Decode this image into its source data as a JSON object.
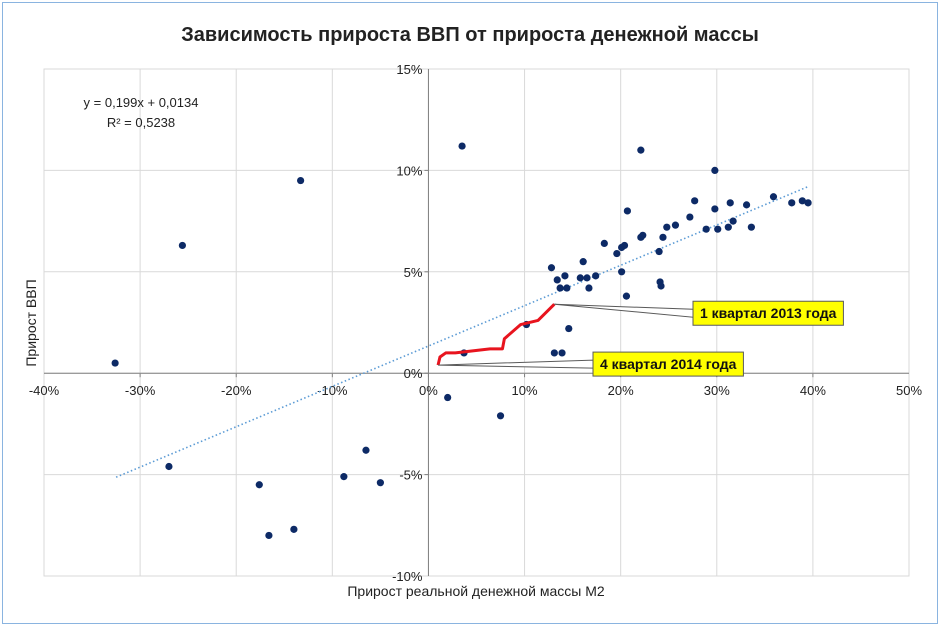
{
  "chart_data": {
    "type": "scatter",
    "title": "Зависимость прироста ВВП от прироста денежной массы",
    "xlabel": "Прирост реальной денежной массы М2",
    "ylabel": "Прирост ВВП",
    "xlim": [
      -0.4,
      0.5
    ],
    "ylim": [
      -0.1,
      0.15
    ],
    "x_ticks": [
      {
        "value": -0.4,
        "label": "-40%"
      },
      {
        "value": -0.3,
        "label": "-30%"
      },
      {
        "value": -0.2,
        "label": "-20%"
      },
      {
        "value": -0.1,
        "label": "-10%"
      },
      {
        "value": 0.0,
        "label": "0%"
      },
      {
        "value": 0.1,
        "label": "10%"
      },
      {
        "value": 0.2,
        "label": "20%"
      },
      {
        "value": 0.3,
        "label": "30%"
      },
      {
        "value": 0.4,
        "label": "40%"
      },
      {
        "value": 0.5,
        "label": "50%"
      }
    ],
    "y_ticks": [
      {
        "value": -0.1,
        "label": "-10%"
      },
      {
        "value": -0.05,
        "label": "-5%"
      },
      {
        "value": 0.0,
        "label": "0%"
      },
      {
        "value": 0.05,
        "label": "5%"
      },
      {
        "value": 0.1,
        "label": "10%"
      },
      {
        "value": 0.15,
        "label": "15%"
      }
    ],
    "grid": true,
    "point_color": "#0d2a66",
    "points": [
      {
        "x": -0.326,
        "y": 0.005
      },
      {
        "x": -0.27,
        "y": -0.046
      },
      {
        "x": -0.256,
        "y": 0.063
      },
      {
        "x": -0.176,
        "y": -0.055
      },
      {
        "x": -0.166,
        "y": -0.08
      },
      {
        "x": -0.14,
        "y": -0.077
      },
      {
        "x": -0.133,
        "y": 0.095
      },
      {
        "x": -0.088,
        "y": -0.051
      },
      {
        "x": -0.065,
        "y": -0.038
      },
      {
        "x": -0.05,
        "y": -0.054
      },
      {
        "x": 0.02,
        "y": -0.012
      },
      {
        "x": 0.035,
        "y": 0.112
      },
      {
        "x": 0.037,
        "y": 0.01
      },
      {
        "x": 0.075,
        "y": -0.021
      },
      {
        "x": 0.102,
        "y": 0.024
      },
      {
        "x": 0.128,
        "y": 0.052
      },
      {
        "x": 0.131,
        "y": 0.01
      },
      {
        "x": 0.134,
        "y": 0.046
      },
      {
        "x": 0.137,
        "y": 0.042
      },
      {
        "x": 0.139,
        "y": 0.01
      },
      {
        "x": 0.142,
        "y": 0.048
      },
      {
        "x": 0.144,
        "y": 0.042
      },
      {
        "x": 0.146,
        "y": 0.022
      },
      {
        "x": 0.158,
        "y": 0.047
      },
      {
        "x": 0.161,
        "y": 0.055
      },
      {
        "x": 0.165,
        "y": 0.047
      },
      {
        "x": 0.167,
        "y": 0.042
      },
      {
        "x": 0.174,
        "y": 0.048
      },
      {
        "x": 0.183,
        "y": 0.064
      },
      {
        "x": 0.196,
        "y": 0.059
      },
      {
        "x": 0.201,
        "y": 0.062
      },
      {
        "x": 0.201,
        "y": 0.05
      },
      {
        "x": 0.204,
        "y": 0.063
      },
      {
        "x": 0.206,
        "y": 0.038
      },
      {
        "x": 0.207,
        "y": 0.08
      },
      {
        "x": 0.221,
        "y": 0.11
      },
      {
        "x": 0.221,
        "y": 0.067
      },
      {
        "x": 0.223,
        "y": 0.068
      },
      {
        "x": 0.24,
        "y": 0.06
      },
      {
        "x": 0.241,
        "y": 0.045
      },
      {
        "x": 0.242,
        "y": 0.043
      },
      {
        "x": 0.244,
        "y": 0.067
      },
      {
        "x": 0.248,
        "y": 0.072
      },
      {
        "x": 0.257,
        "y": 0.073
      },
      {
        "x": 0.272,
        "y": 0.077
      },
      {
        "x": 0.277,
        "y": 0.085
      },
      {
        "x": 0.289,
        "y": 0.071
      },
      {
        "x": 0.298,
        "y": 0.081
      },
      {
        "x": 0.298,
        "y": 0.1
      },
      {
        "x": 0.301,
        "y": 0.071
      },
      {
        "x": 0.312,
        "y": 0.072
      },
      {
        "x": 0.314,
        "y": 0.084
      },
      {
        "x": 0.317,
        "y": 0.075
      },
      {
        "x": 0.331,
        "y": 0.083
      },
      {
        "x": 0.336,
        "y": 0.072
      },
      {
        "x": 0.359,
        "y": 0.087
      },
      {
        "x": 0.378,
        "y": 0.084
      },
      {
        "x": 0.389,
        "y": 0.085
      },
      {
        "x": 0.395,
        "y": 0.084
      }
    ],
    "trendline": {
      "style": "dotted",
      "color": "#5b9bd5",
      "x_range": [
        -0.325,
        0.395
      ],
      "equation": "y = 0,199x + 0,0134",
      "r2": "R² = 0,5238",
      "slope": 0.199,
      "intercept": 0.0134
    },
    "path": {
      "color": "#e8141e",
      "points": [
        {
          "x": 0.131,
          "y": 0.034
        },
        {
          "x": 0.114,
          "y": 0.026
        },
        {
          "x": 0.096,
          "y": 0.024
        },
        {
          "x": 0.079,
          "y": 0.017
        },
        {
          "x": 0.077,
          "y": 0.012
        },
        {
          "x": 0.064,
          "y": 0.012
        },
        {
          "x": 0.028,
          "y": 0.01
        },
        {
          "x": 0.018,
          "y": 0.01
        },
        {
          "x": 0.012,
          "y": 0.008
        },
        {
          "x": 0.01,
          "y": 0.004
        }
      ]
    },
    "annotations": [
      {
        "text": "1 квартал 2013 года",
        "target": {
          "x": 0.131,
          "y": 0.034
        },
        "side": "right",
        "fill": "#ffff00"
      },
      {
        "text": "4 квартал 2014 года",
        "target": {
          "x": 0.01,
          "y": 0.004
        },
        "side": "right",
        "fill": "#ffff00"
      }
    ]
  }
}
